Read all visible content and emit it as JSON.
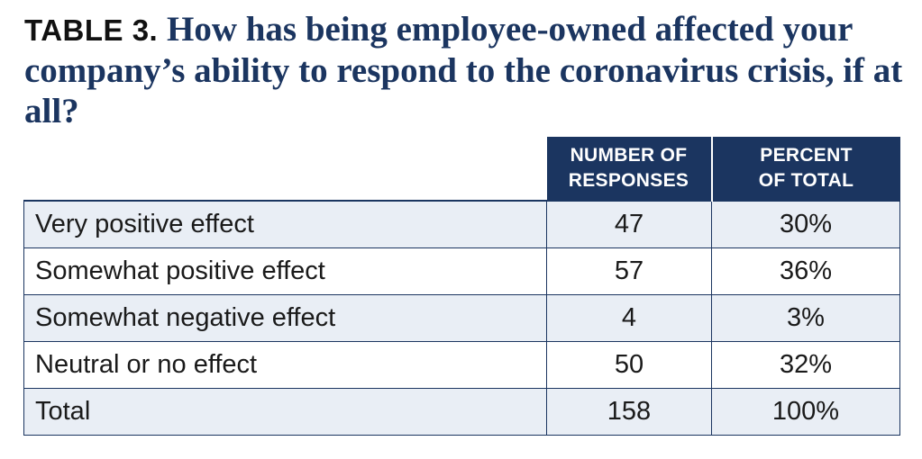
{
  "title": {
    "label": "TABLE 3.",
    "question": "How has being employee-owned affected your company’s ability to respond to the coronavirus crisis, if at all?"
  },
  "table": {
    "headers": [
      "NUMBER OF\nRESPONSES",
      "PERCENT\nOF TOTAL"
    ],
    "rows": [
      {
        "label": "Very positive effect",
        "responses": "47",
        "percent": "30%"
      },
      {
        "label": "Somewhat positive effect",
        "responses": "57",
        "percent": "36%"
      },
      {
        "label": "Somewhat negative effect",
        "responses": "4",
        "percent": "3%"
      },
      {
        "label": "Neutral or no effect",
        "responses": "50",
        "percent": "32%"
      },
      {
        "label": "Total",
        "responses": "158",
        "percent": "100%"
      }
    ]
  },
  "colors": {
    "header_bg": "#1b3560",
    "title_text": "#1b3560",
    "stripe": "#e9eef5"
  }
}
